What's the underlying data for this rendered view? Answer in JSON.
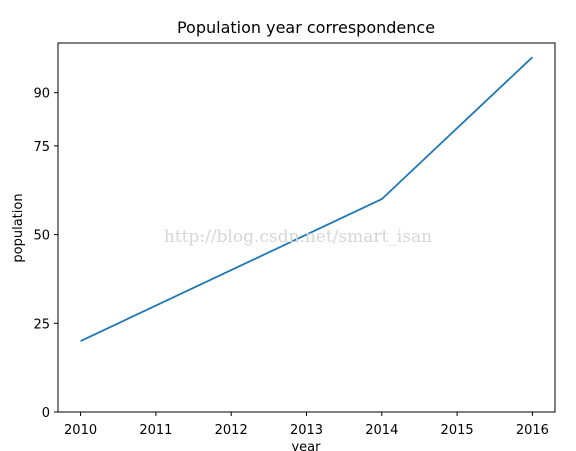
{
  "chart_data": {
    "type": "line",
    "title": "Population year correspondence",
    "xlabel": "year",
    "ylabel": "population",
    "x": [
      2010,
      2011,
      2012,
      2013,
      2014,
      2015,
      2016
    ],
    "series": [
      {
        "values": [
          20,
          30,
          40,
          50,
          60,
          80,
          100
        ],
        "color": "#1f77b4"
      }
    ],
    "xticks": [
      "2010",
      "2011",
      "2012",
      "2013",
      "2014",
      "2015",
      "2016"
    ],
    "yticks": [
      0,
      25,
      50,
      75,
      90
    ],
    "ylim": [
      0,
      104
    ],
    "xlim": [
      2009.7,
      2016.3
    ],
    "grid": false,
    "watermark": "http://blog.csdn.net/smart_isan"
  }
}
